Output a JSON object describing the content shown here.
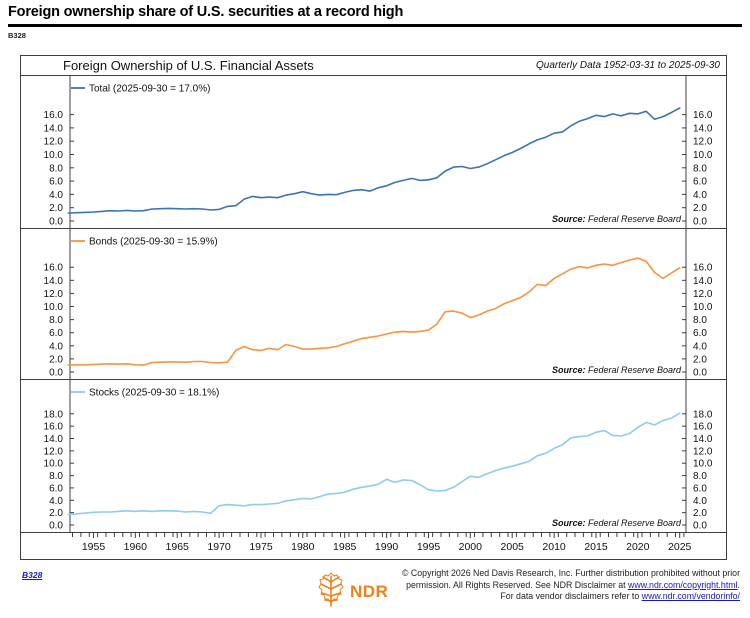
{
  "page": {
    "headline": "Foreign ownership share of U.S. securities at a record high",
    "chart_id": "B328"
  },
  "chart": {
    "title": "Foreign Ownership of U.S. Financial Assets",
    "subtitle": "Quarterly Data 1952-03-31 to 2025-09-30",
    "source_label": "Source:",
    "source_value": "Federal Reserve Board"
  },
  "colors": {
    "total_line": "#3c74ac",
    "bonds_line": "#f79440",
    "stocks_line": "#8ecbec",
    "border": "#3f3f3f",
    "link_blue": "#1717c4",
    "ndr_orange": "#f08019"
  },
  "footer": {
    "chart_id_link": "B328",
    "logo_text": "NDR",
    "copyright_line1": "© Copyright 2026 Ned Davis Research, Inc. Further distribution prohibited without prior",
    "copyright_line2_prefix": "permission. All Rights Reserved. See NDR Disclaimer at ",
    "copyright_line2_link": "www.ndr.com/copyright.html",
    "copyright_line2_suffix": ".",
    "copyright_line3_prefix": "For data vendor disclaimers refer to ",
    "copyright_line3_link": "www.ndr.com/vendorinfo/"
  },
  "chart_data": {
    "type": "line",
    "title": "Foreign Ownership of U.S. Financial Assets",
    "subtitle": "Quarterly Data 1952-03-31 to 2025-09-30",
    "x_label": "",
    "x_years": [
      1952,
      1953,
      1954,
      1955,
      1956,
      1957,
      1958,
      1959,
      1960,
      1961,
      1962,
      1963,
      1964,
      1965,
      1966,
      1967,
      1968,
      1969,
      1970,
      1971,
      1972,
      1973,
      1974,
      1975,
      1976,
      1977,
      1978,
      1979,
      1980,
      1981,
      1982,
      1983,
      1984,
      1985,
      1986,
      1987,
      1988,
      1989,
      1990,
      1991,
      1992,
      1993,
      1994,
      1995,
      1996,
      1997,
      1998,
      1999,
      2000,
      2001,
      2002,
      2003,
      2004,
      2005,
      2006,
      2007,
      2008,
      2009,
      2010,
      2011,
      2012,
      2013,
      2014,
      2015,
      2016,
      2017,
      2018,
      2019,
      2020,
      2021,
      2022,
      2023,
      2024,
      2025
    ],
    "x_ticks": [
      1955,
      1960,
      1965,
      1970,
      1975,
      1980,
      1985,
      1990,
      1995,
      2000,
      2005,
      2010,
      2015,
      2020,
      2025
    ],
    "panels": [
      {
        "name": "Total",
        "legend": "Total (2025-09-30 = 17.0%)",
        "color": "#3c74ac",
        "source_label": "Source:",
        "source_value": "Federal Reserve Board",
        "ylim": [
          0,
          19.7
        ],
        "y_ticks": [
          0,
          2,
          4,
          6,
          8,
          10,
          12,
          14,
          16
        ],
        "last_value": 17.0,
        "last_date": "2025-09-30",
        "values": [
          1.2,
          1.25,
          1.3,
          1.35,
          1.45,
          1.55,
          1.5,
          1.6,
          1.5,
          1.55,
          1.8,
          1.85,
          1.9,
          1.85,
          1.8,
          1.85,
          1.8,
          1.65,
          1.75,
          2.2,
          2.3,
          3.3,
          3.7,
          3.5,
          3.6,
          3.5,
          3.9,
          4.1,
          4.4,
          4.1,
          3.9,
          4.0,
          3.95,
          4.3,
          4.6,
          4.7,
          4.5,
          5.0,
          5.3,
          5.8,
          6.1,
          6.4,
          6.1,
          6.2,
          6.5,
          7.5,
          8.1,
          8.2,
          7.9,
          8.1,
          8.6,
          9.2,
          9.8,
          10.3,
          10.9,
          11.6,
          12.2,
          12.6,
          13.2,
          13.4,
          14.3,
          15.0,
          15.4,
          15.9,
          15.7,
          16.1,
          15.8,
          16.2,
          16.1,
          16.5,
          15.3,
          15.7,
          16.3,
          17.0
        ]
      },
      {
        "name": "Bonds",
        "legend": "Bonds (2025-09-30 = 15.9%)",
        "color": "#f79440",
        "source_label": "Source:",
        "source_value": "Federal Reserve Board",
        "ylim": [
          0,
          19.7
        ],
        "y_ticks": [
          0,
          2,
          4,
          6,
          8,
          10,
          12,
          14,
          16
        ],
        "last_value": 15.9,
        "last_date": "2025-09-30",
        "values": [
          1.05,
          1.1,
          1.1,
          1.15,
          1.2,
          1.25,
          1.2,
          1.25,
          1.1,
          1.05,
          1.45,
          1.5,
          1.55,
          1.55,
          1.5,
          1.6,
          1.6,
          1.45,
          1.4,
          1.5,
          3.3,
          3.9,
          3.4,
          3.3,
          3.6,
          3.4,
          4.2,
          3.9,
          3.5,
          3.5,
          3.6,
          3.7,
          3.9,
          4.3,
          4.7,
          5.1,
          5.3,
          5.5,
          5.8,
          6.1,
          6.2,
          6.1,
          6.2,
          6.4,
          7.3,
          9.2,
          9.3,
          9.0,
          8.3,
          8.7,
          9.3,
          9.7,
          10.4,
          10.9,
          11.4,
          12.2,
          13.4,
          13.2,
          14.3,
          15.0,
          15.7,
          16.1,
          15.9,
          16.3,
          16.5,
          16.3,
          16.7,
          17.1,
          17.4,
          16.9,
          15.2,
          14.3,
          15.1,
          15.9
        ]
      },
      {
        "name": "Stocks",
        "legend": "Stocks (2025-09-30 = 18.1%)",
        "color": "#8ecbec",
        "source_label": "Source:",
        "source_value": "Federal Reserve Board",
        "ylim": [
          0,
          21.2
        ],
        "y_ticks": [
          0,
          2,
          4,
          6,
          8,
          10,
          12,
          14,
          16,
          18
        ],
        "last_value": 18.1,
        "last_date": "2025-09-30",
        "values": [
          1.7,
          1.8,
          1.95,
          2.05,
          2.1,
          2.1,
          2.2,
          2.3,
          2.2,
          2.3,
          2.2,
          2.3,
          2.3,
          2.25,
          2.1,
          2.2,
          2.1,
          1.9,
          3.1,
          3.3,
          3.2,
          3.1,
          3.3,
          3.3,
          3.4,
          3.5,
          3.9,
          4.1,
          4.3,
          4.2,
          4.6,
          5.0,
          5.1,
          5.3,
          5.8,
          6.1,
          6.3,
          6.6,
          7.4,
          6.9,
          7.3,
          7.2,
          6.5,
          5.7,
          5.5,
          5.6,
          6.1,
          7.0,
          7.9,
          7.7,
          8.3,
          8.8,
          9.2,
          9.5,
          9.9,
          10.3,
          11.2,
          11.6,
          12.4,
          13.0,
          14.1,
          14.3,
          14.4,
          15.0,
          15.3,
          14.5,
          14.4,
          14.8,
          15.8,
          16.6,
          16.2,
          16.9,
          17.3,
          18.1
        ]
      }
    ]
  }
}
